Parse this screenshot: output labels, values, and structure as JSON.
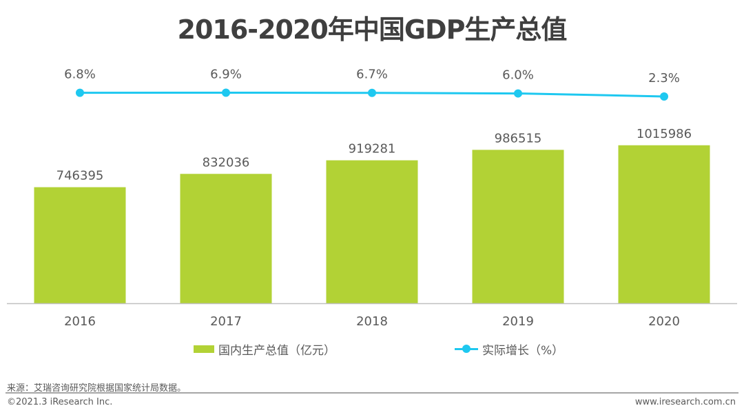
{
  "chart_data": {
    "type": "bar",
    "title": "2016-2020年中国GDP生产总值",
    "categories": [
      "2016",
      "2017",
      "2018",
      "2019",
      "2020"
    ],
    "series": [
      {
        "name": "国内生产总值（亿元）",
        "type": "bar",
        "color": "#b2d235",
        "values": [
          746395,
          832036,
          919281,
          986515,
          1015986
        ],
        "labels": [
          "746395",
          "832036",
          "919281",
          "986515",
          "1015986"
        ]
      },
      {
        "name": "实际增长（%）",
        "type": "line",
        "color": "#1ec8f0",
        "values": [
          6.8,
          6.9,
          6.7,
          6.0,
          2.3
        ],
        "labels": [
          "6.8%",
          "6.9%",
          "6.7%",
          "6.0%",
          "2.3%"
        ]
      }
    ],
    "xlabel": "",
    "ylabel": "",
    "ylim": [
      0,
      1950000
    ],
    "y2lim": [
      -250,
      120
    ],
    "grid": false,
    "legend": "bottom"
  },
  "footer": {
    "source": "来源：艾瑞咨询研究院根据国家统计局数据。",
    "copyright": "©2021.3 iResearch Inc.",
    "website": "www.iresearch.com.cn"
  }
}
